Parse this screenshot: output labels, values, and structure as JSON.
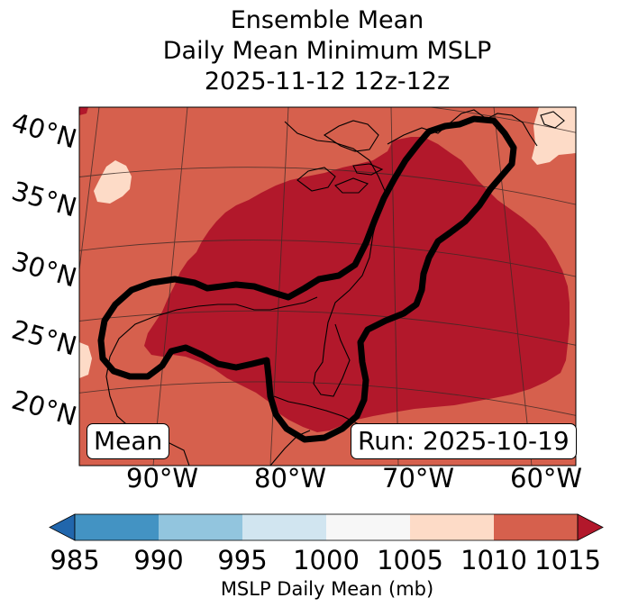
{
  "title": {
    "line1": "Ensemble Mean",
    "line2": "Daily Mean Minimum MSLP",
    "line3": "2025-11-12 12z-12z"
  },
  "map": {
    "lat_labels": [
      "40°N",
      "35°N",
      "30°N",
      "25°N",
      "20°N"
    ],
    "lon_labels": [
      "90°W",
      "80°W",
      "70°W",
      "60°W"
    ],
    "left_box": "Mean",
    "right_box": "Run: 2025-10-19",
    "colors": {
      "lt985": "#2166ac",
      "c985_990": "#4393c3",
      "c990_995": "#92c5de",
      "c995_1000": "#d1e5f0",
      "c1000_1005": "#f7f7f7",
      "c1005_1010": "#fddbc7",
      "c1010_1015": "#d6604d",
      "gt1015": "#b2182b"
    }
  },
  "colorbar": {
    "ticks": [
      "985",
      "990",
      "995",
      "1000",
      "1005",
      "1010",
      "1015"
    ],
    "label": "MSLP Daily Mean (mb)"
  }
}
